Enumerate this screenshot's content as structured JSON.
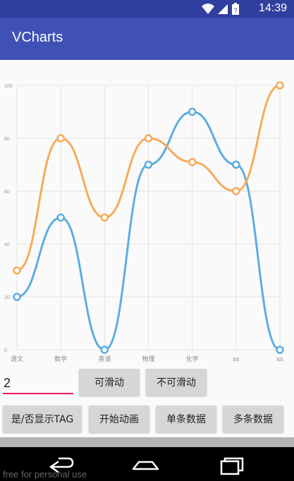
{
  "status": {
    "time": "14:39"
  },
  "app": {
    "title": "VCharts"
  },
  "chart_data": {
    "type": "line",
    "categories": [
      "语文",
      "数学",
      "英语",
      "物理",
      "化学",
      "ss",
      "ss"
    ],
    "ylim": [
      0,
      100
    ],
    "yticks": [
      "0",
      "20",
      "40",
      "60",
      "80",
      "100"
    ],
    "series": [
      {
        "values": [
          20,
          50,
          0,
          70,
          90,
          70,
          0
        ],
        "color": "#5dade2"
      },
      {
        "values": [
          30,
          80,
          50,
          80,
          71,
          60,
          100
        ],
        "color": "#f5ab59"
      }
    ],
    "grid": true
  },
  "controls": {
    "input_value": "2",
    "btn_scrollable": "可滑动",
    "btn_not_scrollable": "不可滑动",
    "btn_toggle_tag": "是/否显示TAG",
    "btn_start_anim": "开始动画",
    "btn_single": "单条数据",
    "btn_multi": "多条数据"
  },
  "watermark": "free for personal use",
  "icons": [
    "wifi-icon",
    "cellular-icon",
    "battery-icon",
    "back-icon",
    "home-icon",
    "recents-icon"
  ]
}
